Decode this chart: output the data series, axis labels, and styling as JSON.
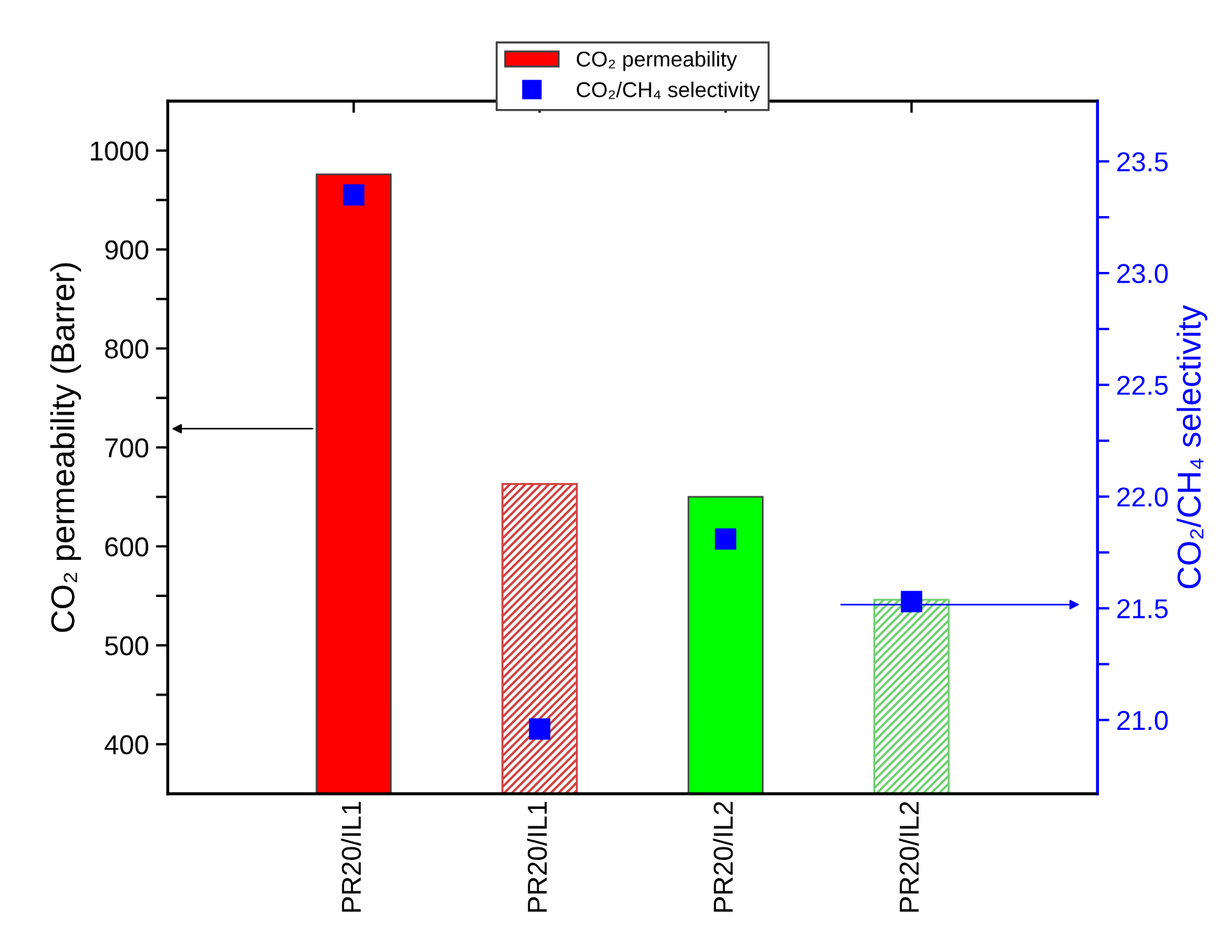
{
  "chart_data": {
    "type": "bar",
    "ylabel": "CO₂ permeability (Barrer)",
    "y2label": "CO₂/CH₄ selectivity",
    "categories": [
      "PR20/IL1",
      "PR20/IL1",
      "PR20/IL2",
      "PR20/IL2"
    ],
    "series": [
      {
        "name": "CO₂ permeability",
        "colors": [
          "#ff0000",
          "#d04040",
          "#00ff00",
          "#70d070"
        ],
        "values": [
          976,
          663,
          650,
          546
        ]
      },
      {
        "name": "CO₂/CH₄ selectivity",
        "type": "scatter",
        "axis": "y2",
        "color": "#0000ff",
        "marker": "square",
        "values": [
          23.35,
          20.96,
          21.81,
          21.53
        ]
      }
    ],
    "ylim": [
      350,
      1050
    ],
    "yticks": [
      {
        "value": 400,
        "label": "400"
      },
      {
        "value": 450,
        "label": null
      },
      {
        "value": 500,
        "label": "500"
      },
      {
        "value": 550,
        "label": null
      },
      {
        "value": 600,
        "label": "600"
      },
      {
        "value": 650,
        "label": null
      },
      {
        "value": 700,
        "label": "700"
      },
      {
        "value": 750,
        "label": null
      },
      {
        "value": 800,
        "label": "800"
      },
      {
        "value": 850,
        "label": null
      },
      {
        "value": 900,
        "label": "900"
      },
      {
        "value": 950,
        "label": null
      },
      {
        "value": 1000,
        "label": "1000"
      }
    ],
    "y2lim": [
      20.67,
      23.77
    ],
    "y2ticks": [
      {
        "value": 21.0,
        "label": "21.0"
      },
      {
        "value": 21.25,
        "label": null
      },
      {
        "value": 21.5,
        "label": "21.5"
      },
      {
        "value": 21.75,
        "label": null
      },
      {
        "value": 22.0,
        "label": "22.0"
      },
      {
        "value": 22.25,
        "label": null
      },
      {
        "value": 22.5,
        "label": "22.5"
      },
      {
        "value": 22.75,
        "label": null
      },
      {
        "value": 23.0,
        "label": "23.0"
      },
      {
        "value": 23.25,
        "label": null
      },
      {
        "value": 23.5,
        "label": "23.5"
      }
    ],
    "legend": "top",
    "grid": false
  }
}
